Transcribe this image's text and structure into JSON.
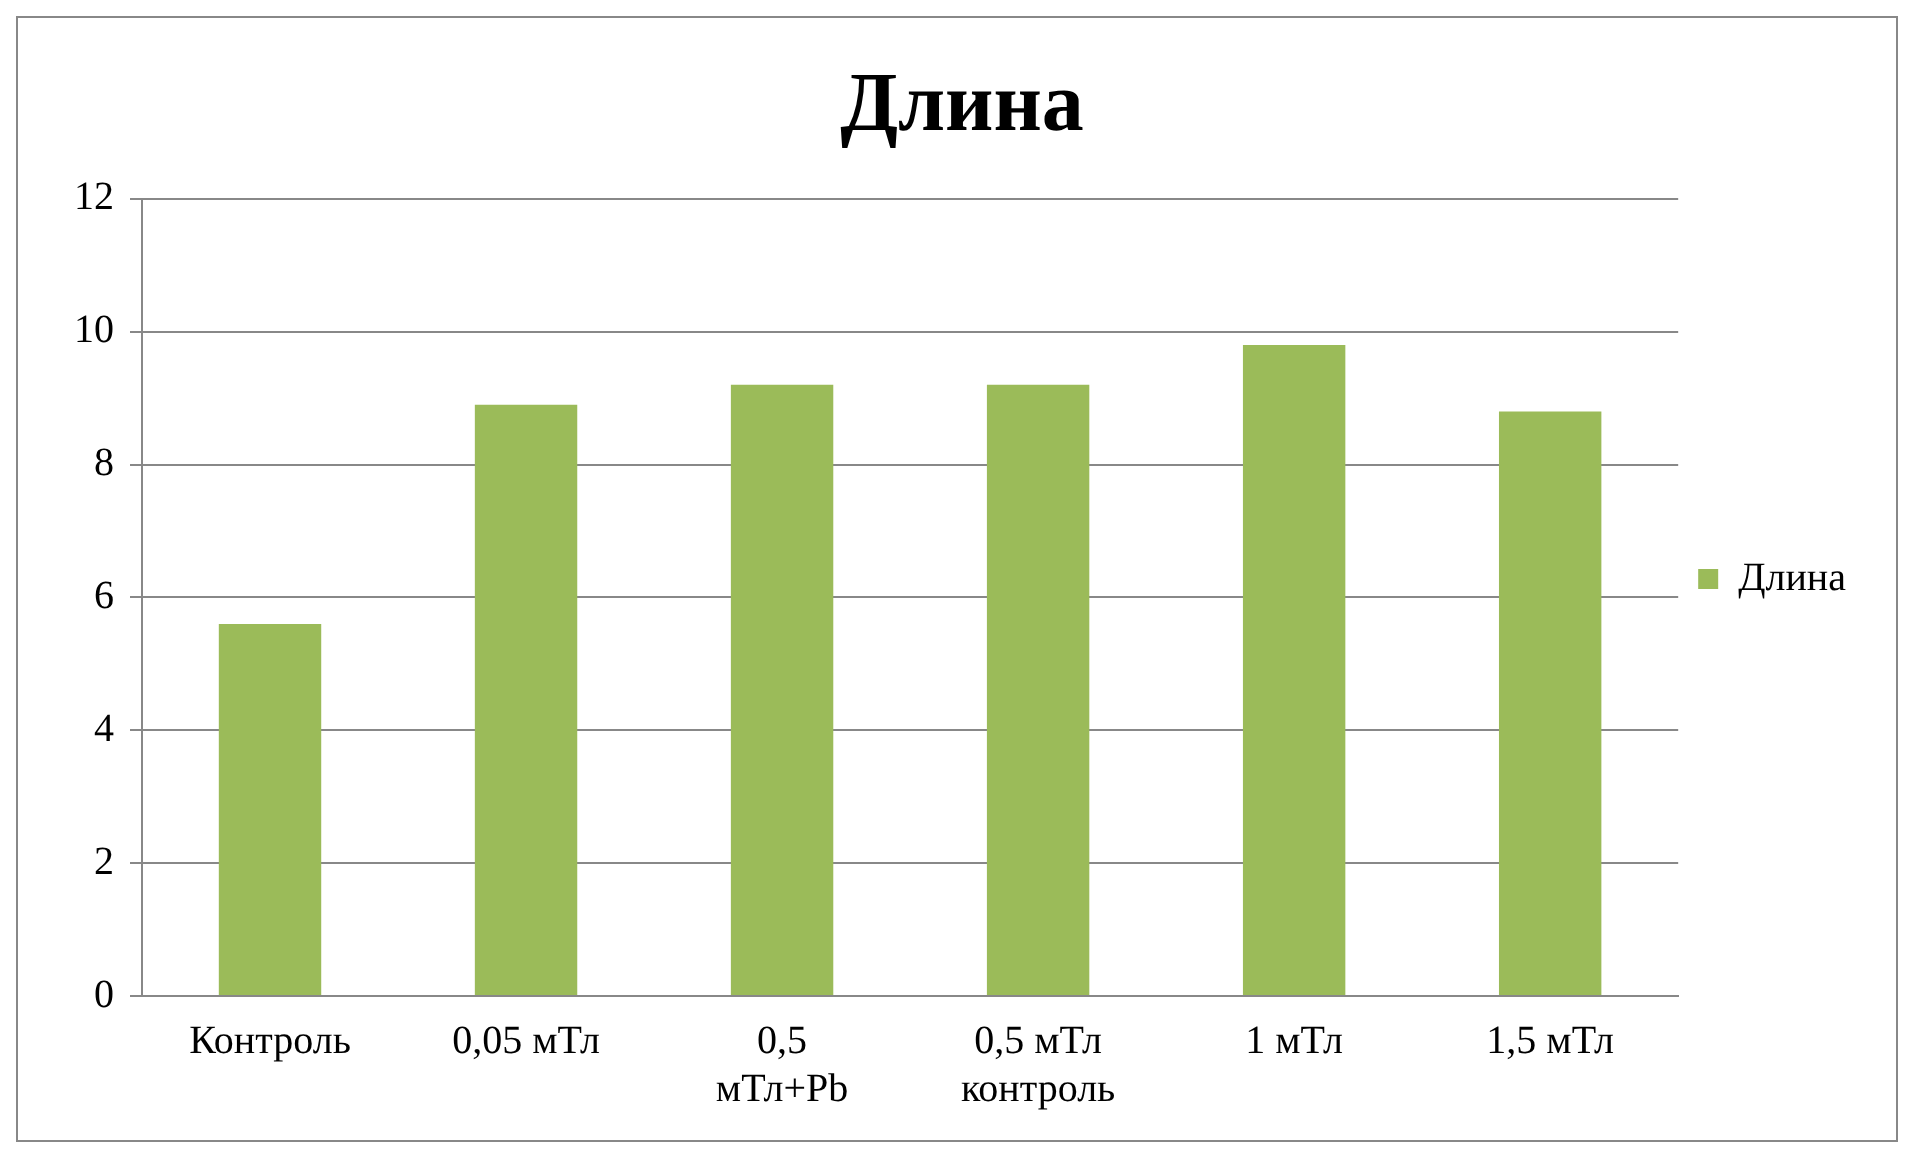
{
  "chart_data": {
    "type": "bar",
    "title": "Длина",
    "categories": [
      "Контроль",
      "0,05 мТл",
      "0,5 мТл+Pb",
      "0,5 мТл контроль",
      "1 мТл",
      "1,5 мТл"
    ],
    "series": [
      {
        "name": "Длина",
        "color": "#9bbb59",
        "values": [
          5.6,
          8.9,
          9.2,
          9.2,
          9.8,
          8.8
        ]
      }
    ],
    "ylim": [
      0,
      12
    ],
    "yticks": [
      0,
      2,
      4,
      6,
      8,
      10,
      12
    ],
    "grid": "y",
    "legend": "right"
  }
}
